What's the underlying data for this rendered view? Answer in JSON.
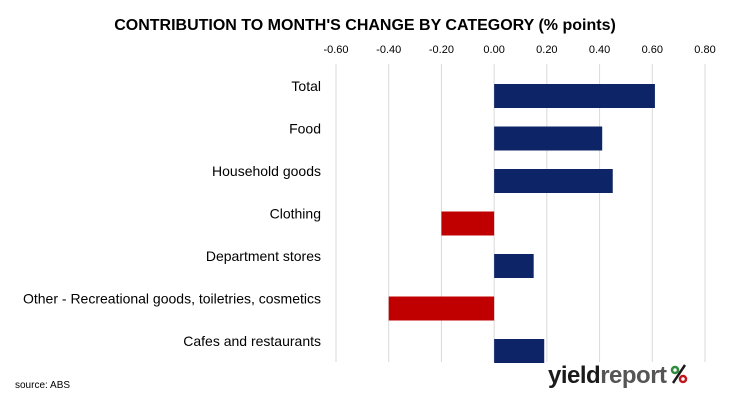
{
  "colors": {
    "positive": "#0d2466",
    "negative": "#c00000",
    "grid": "#d9d9d9",
    "logo_green": "#2e8b3a",
    "logo_red": "#c0171d"
  },
  "logo": {
    "part1": "yield",
    "part2": "report",
    "symbol_icon": "percent-icon"
  },
  "source": "source: ABS",
  "chart_data": {
    "type": "bar",
    "orientation": "horizontal",
    "title": "CONTRIBUTION TO MONTH'S CHANGE BY CATEGORY (% points)",
    "xlabel": "",
    "ylabel": "",
    "xlim": [
      -0.6,
      0.8
    ],
    "ticks": [
      "-0.60",
      "-0.40",
      "-0.20",
      "0.00",
      "0.20",
      "0.40",
      "0.60",
      "0.80"
    ],
    "tick_values": [
      -0.6,
      -0.4,
      -0.2,
      0.0,
      0.2,
      0.4,
      0.6,
      0.8
    ],
    "grid": true,
    "axis_position": "top",
    "categories": [
      "Total",
      "Food",
      "Household goods",
      "Clothing",
      "Department stores",
      "Other - Recreational goods, toiletries, cosmetics",
      "Cafes and restaurants"
    ],
    "values": [
      0.61,
      0.41,
      0.45,
      -0.2,
      0.15,
      -0.4,
      0.19
    ]
  }
}
